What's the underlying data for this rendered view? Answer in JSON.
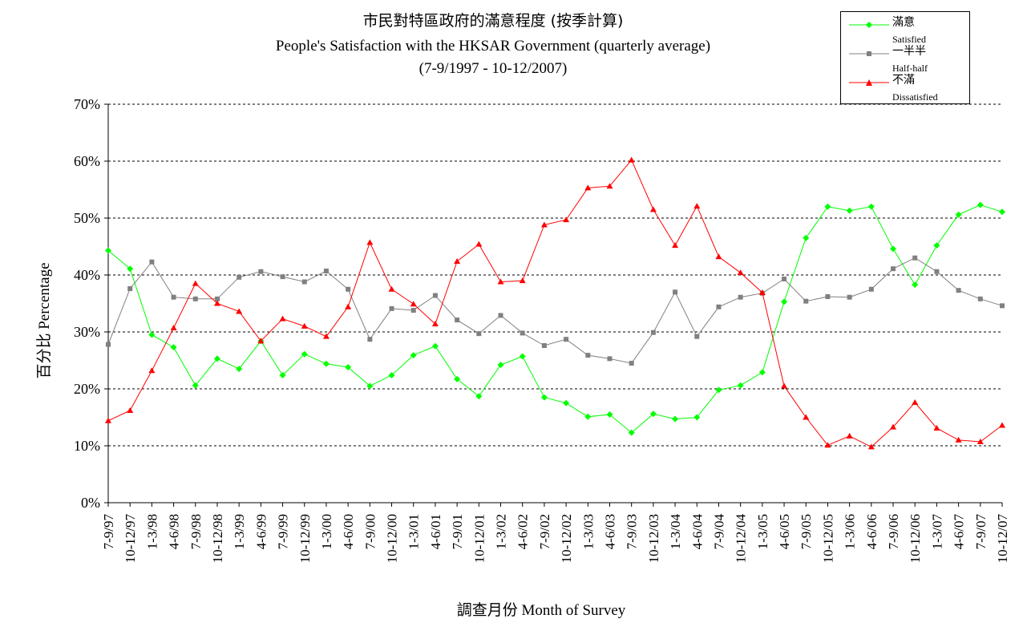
{
  "chart_data": {
    "type": "line",
    "title": "市民對特區政府的滿意程度 (按季計算)",
    "subtitle": "People's Satisfaction with the HKSAR Government (quarterly average)",
    "subtitle2": "(7-9/1997 - 10-12/2007)",
    "xlabel": "調查月份 Month of Survey",
    "ylabel": "百分比 Percentage",
    "ylim": [
      0,
      70
    ],
    "yticks": [
      "0%",
      "10%",
      "20%",
      "30%",
      "40%",
      "50%",
      "60%",
      "70%"
    ],
    "grid": true,
    "legend_position": "top-right",
    "categories": [
      "7-9/97",
      "10-12/97",
      "1-3/98",
      "4-6/98",
      "7-9/98",
      "10-12/98",
      "1-3/99",
      "4-6/99",
      "7-9/99",
      "10-12/99",
      "1-3/00",
      "4-6/00",
      "7-9/00",
      "10-12/00",
      "1-3/01",
      "4-6/01",
      "7-9/01",
      "10-12/01",
      "1-3/02",
      "4-6/02",
      "7-9/02",
      "10-12/02",
      "1-3/03",
      "4-6/03",
      "7-9/03",
      "10-12/03",
      "1-3/04",
      "4-6/04",
      "7-9/04",
      "10-12/04",
      "1-3/05",
      "4-6/05",
      "7-9/05",
      "10-12/05",
      "1-3/06",
      "4-6/06",
      "7-9/06",
      "10-12/06",
      "1-3/07",
      "4-6/07",
      "7-9/07",
      "10-12/07"
    ],
    "series": [
      {
        "name": "滿意",
        "name_en": "Satisfied",
        "color": "#00ff00",
        "marker": "diamond",
        "values": [
          44.3,
          41.1,
          29.5,
          27.3,
          20.6,
          25.3,
          23.5,
          28.4,
          22.4,
          26.1,
          24.4,
          23.8,
          20.5,
          22.4,
          25.9,
          27.5,
          21.7,
          18.7,
          24.2,
          25.7,
          18.5,
          17.5,
          15.1,
          15.5,
          12.3,
          15.6,
          14.7,
          15.0,
          19.8,
          20.6,
          22.9,
          35.3,
          46.5,
          52.0,
          51.3,
          52.0,
          44.6,
          38.3,
          45.2,
          50.6,
          52.3,
          51.1
        ]
      },
      {
        "name": "一半半",
        "name_en": "Half-half",
        "color": "#808080",
        "marker": "square",
        "values": [
          27.8,
          37.6,
          42.3,
          36.1,
          35.8,
          35.8,
          39.6,
          40.6,
          39.7,
          38.8,
          40.7,
          37.5,
          28.7,
          34.1,
          33.8,
          36.4,
          32.1,
          29.7,
          32.9,
          29.8,
          27.6,
          28.7,
          25.9,
          25.3,
          24.5,
          29.9,
          37.0,
          29.2,
          34.4,
          36.1,
          36.8,
          39.3,
          35.4,
          36.2,
          36.1,
          37.5,
          41.1,
          43.0,
          40.6,
          37.3,
          35.8,
          34.6
        ]
      },
      {
        "name": "不滿",
        "name_en": "Dissatisfied",
        "color": "#ff0000",
        "marker": "triangle",
        "values": [
          14.4,
          16.2,
          23.2,
          30.7,
          38.5,
          35.0,
          33.6,
          28.4,
          32.3,
          31.0,
          29.2,
          34.4,
          45.7,
          37.5,
          34.9,
          31.4,
          42.4,
          45.4,
          38.8,
          39.0,
          48.8,
          49.7,
          55.3,
          55.6,
          60.2,
          51.5,
          45.2,
          52.1,
          43.2,
          40.4,
          36.9,
          20.5,
          15.0,
          10.1,
          11.7,
          9.8,
          13.3,
          17.6,
          13.1,
          11.0,
          10.7,
          13.6
        ]
      }
    ]
  }
}
